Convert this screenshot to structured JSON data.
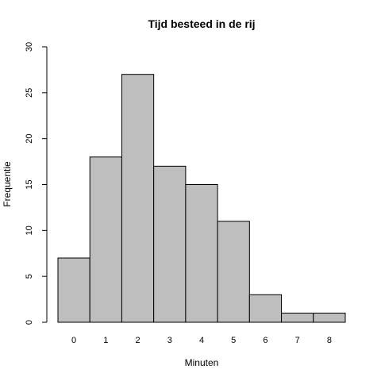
{
  "chart_data": {
    "type": "bar",
    "title": "Tijd besteed in de rij",
    "xlabel": "Minuten",
    "ylabel": "Frequentie",
    "categories": [
      "0",
      "1",
      "2",
      "3",
      "4",
      "5",
      "6",
      "7",
      "8"
    ],
    "values": [
      7,
      18,
      27,
      17,
      15,
      11,
      3,
      1,
      1
    ],
    "ylim": [
      0,
      30
    ],
    "yticks": [
      "0",
      "5",
      "10",
      "15",
      "20",
      "25",
      "30"
    ],
    "grid": false,
    "legend": "none",
    "bar_fill": "#bebebe",
    "bar_stroke": "#000000"
  }
}
